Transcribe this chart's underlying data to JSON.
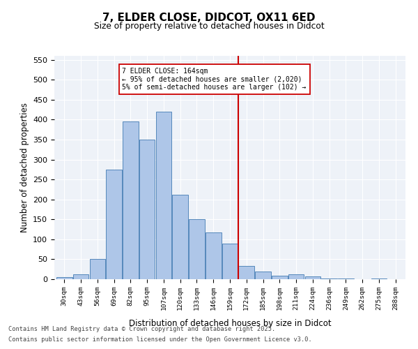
{
  "title_line1": "7, ELDER CLOSE, DIDCOT, OX11 6ED",
  "title_line2": "Size of property relative to detached houses in Didcot",
  "xlabel": "Distribution of detached houses by size in Didcot",
  "ylabel": "Number of detached properties",
  "bin_labels": [
    "30sqm",
    "43sqm",
    "56sqm",
    "69sqm",
    "82sqm",
    "95sqm",
    "107sqm",
    "120sqm",
    "133sqm",
    "146sqm",
    "159sqm",
    "172sqm",
    "185sqm",
    "198sqm",
    "211sqm",
    "224sqm",
    "236sqm",
    "249sqm",
    "262sqm",
    "275sqm",
    "288sqm"
  ],
  "bar_values": [
    5,
    12,
    50,
    275,
    395,
    350,
    420,
    212,
    150,
    118,
    90,
    33,
    20,
    8,
    12,
    7,
    2,
    1,
    0,
    2,
    0
  ],
  "bar_color": "#aec6e8",
  "bar_edge_color": "#5588bb",
  "vline_pos": 10.5,
  "annotation_line1": "7 ELDER CLOSE: 164sqm",
  "annotation_line2": "← 95% of detached houses are smaller (2,020)",
  "annotation_line3": "5% of semi-detached houses are larger (102) →",
  "vline_color": "#cc0000",
  "footer_line1": "Contains HM Land Registry data © Crown copyright and database right 2025.",
  "footer_line2": "Contains public sector information licensed under the Open Government Licence v3.0.",
  "ylim": [
    0,
    560
  ],
  "yticks": [
    0,
    50,
    100,
    150,
    200,
    250,
    300,
    350,
    400,
    450,
    500,
    550
  ],
  "bg_color": "#eef2f8",
  "fig_bg_color": "#ffffff"
}
